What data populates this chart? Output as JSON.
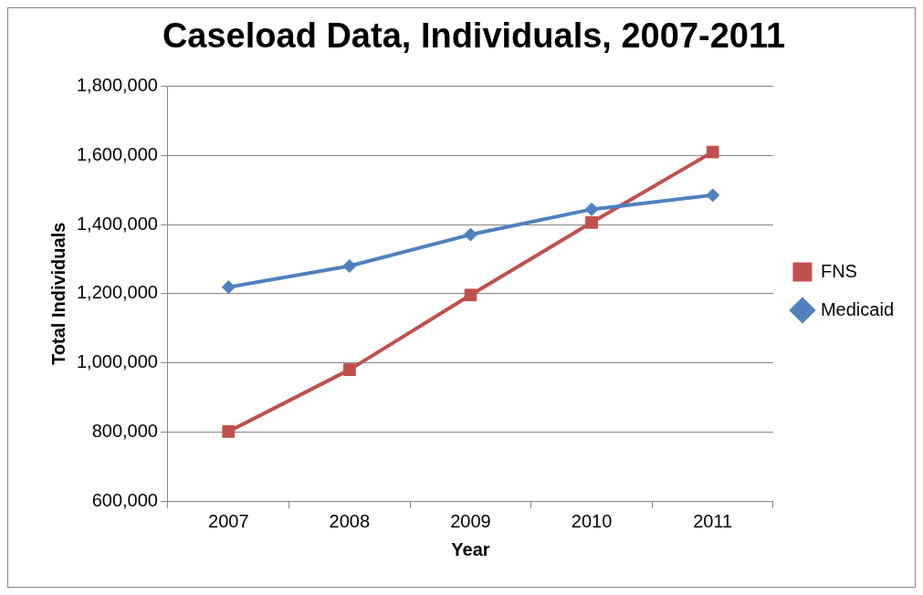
{
  "chart_data": {
    "type": "line",
    "title": "Caseload Data, Individuals, 2007-2011",
    "xlabel": "Year",
    "ylabel": "Total Individuals",
    "categories": [
      "2007",
      "2008",
      "2009",
      "2010",
      "2011"
    ],
    "series": [
      {
        "name": "FNS",
        "color": "#c0504d",
        "marker": "square",
        "values": [
          801000,
          980000,
          1196000,
          1406000,
          1610000
        ]
      },
      {
        "name": "Medicaid",
        "color": "#4f81bd",
        "marker": "diamond",
        "values": [
          1219000,
          1280000,
          1371000,
          1444000,
          1485000
        ]
      }
    ],
    "ylim": [
      600000,
      1800000
    ],
    "yticks": [
      {
        "value": 600000,
        "label": "600,000"
      },
      {
        "value": 800000,
        "label": "800,000"
      },
      {
        "value": 1000000,
        "label": "1,000,000"
      },
      {
        "value": 1200000,
        "label": "1,200,000"
      },
      {
        "value": 1400000,
        "label": "1,400,000"
      },
      {
        "value": 1600000,
        "label": "1,600,000"
      },
      {
        "value": 1800000,
        "label": "1,800,000"
      }
    ],
    "grid": "y",
    "legend": "right"
  }
}
